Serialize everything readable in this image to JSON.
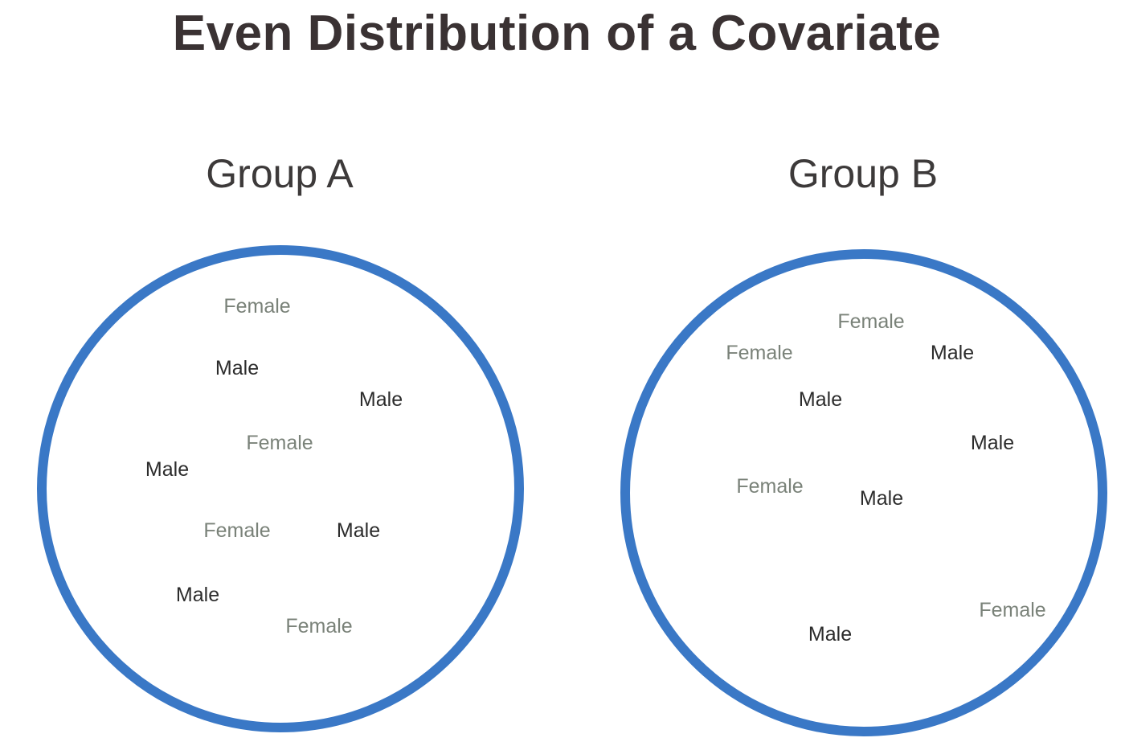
{
  "title": "Even Distribution of a Covariate",
  "groups": [
    {
      "label": "Group A",
      "items": [
        "Female",
        "Male",
        "Male",
        "Female",
        "Male",
        "Female",
        "Male",
        "Male",
        "Female"
      ]
    },
    {
      "label": "Group B",
      "items": [
        "Female",
        "Female",
        "Male",
        "Male",
        "Male",
        "Female",
        "Male",
        "Female",
        "Male"
      ]
    }
  ],
  "colors": {
    "circle_stroke": "#3a78c6",
    "female_text": "#7a8279",
    "male_text": "#2c2c2c",
    "title_text": "#3a3233"
  }
}
